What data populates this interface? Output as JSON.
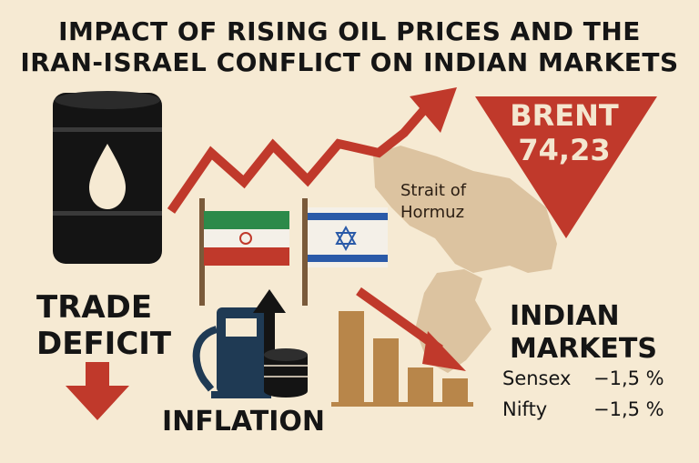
{
  "title": {
    "line1": "IMPACT OF RISING OIL PRICES AND THE",
    "line2": "IRAN-ISRAEL CONFLICT ON INDIAN MARKETS"
  },
  "brent": {
    "label": "BRENT",
    "value": "74,23"
  },
  "map_label": "Strait of Hormuz",
  "trade_deficit": {
    "line1": "TRADE",
    "line2": "DEFICIT"
  },
  "inflation_label": "INFLATION",
  "indian_markets": {
    "line1": "INDIAN",
    "line2": "MARKETS",
    "indices": [
      {
        "name": "Sensex",
        "change": "−1,5 %"
      },
      {
        "name": "Nifty",
        "change": "−1,5 %"
      }
    ]
  },
  "icons": [
    "oil-barrel-icon",
    "iran-flag-icon",
    "israel-flag-icon",
    "fuel-pump-icon",
    "coin-stack-icon",
    "bar-chart-icon",
    "down-arrow-icon",
    "up-trend-arrow-icon"
  ],
  "colors": {
    "background": "#f6ead3",
    "accent_red": "#c0392b",
    "dark": "#151515",
    "map": "#dcc3a0",
    "bars": "#b8864a",
    "pump": "#1f3a54"
  }
}
